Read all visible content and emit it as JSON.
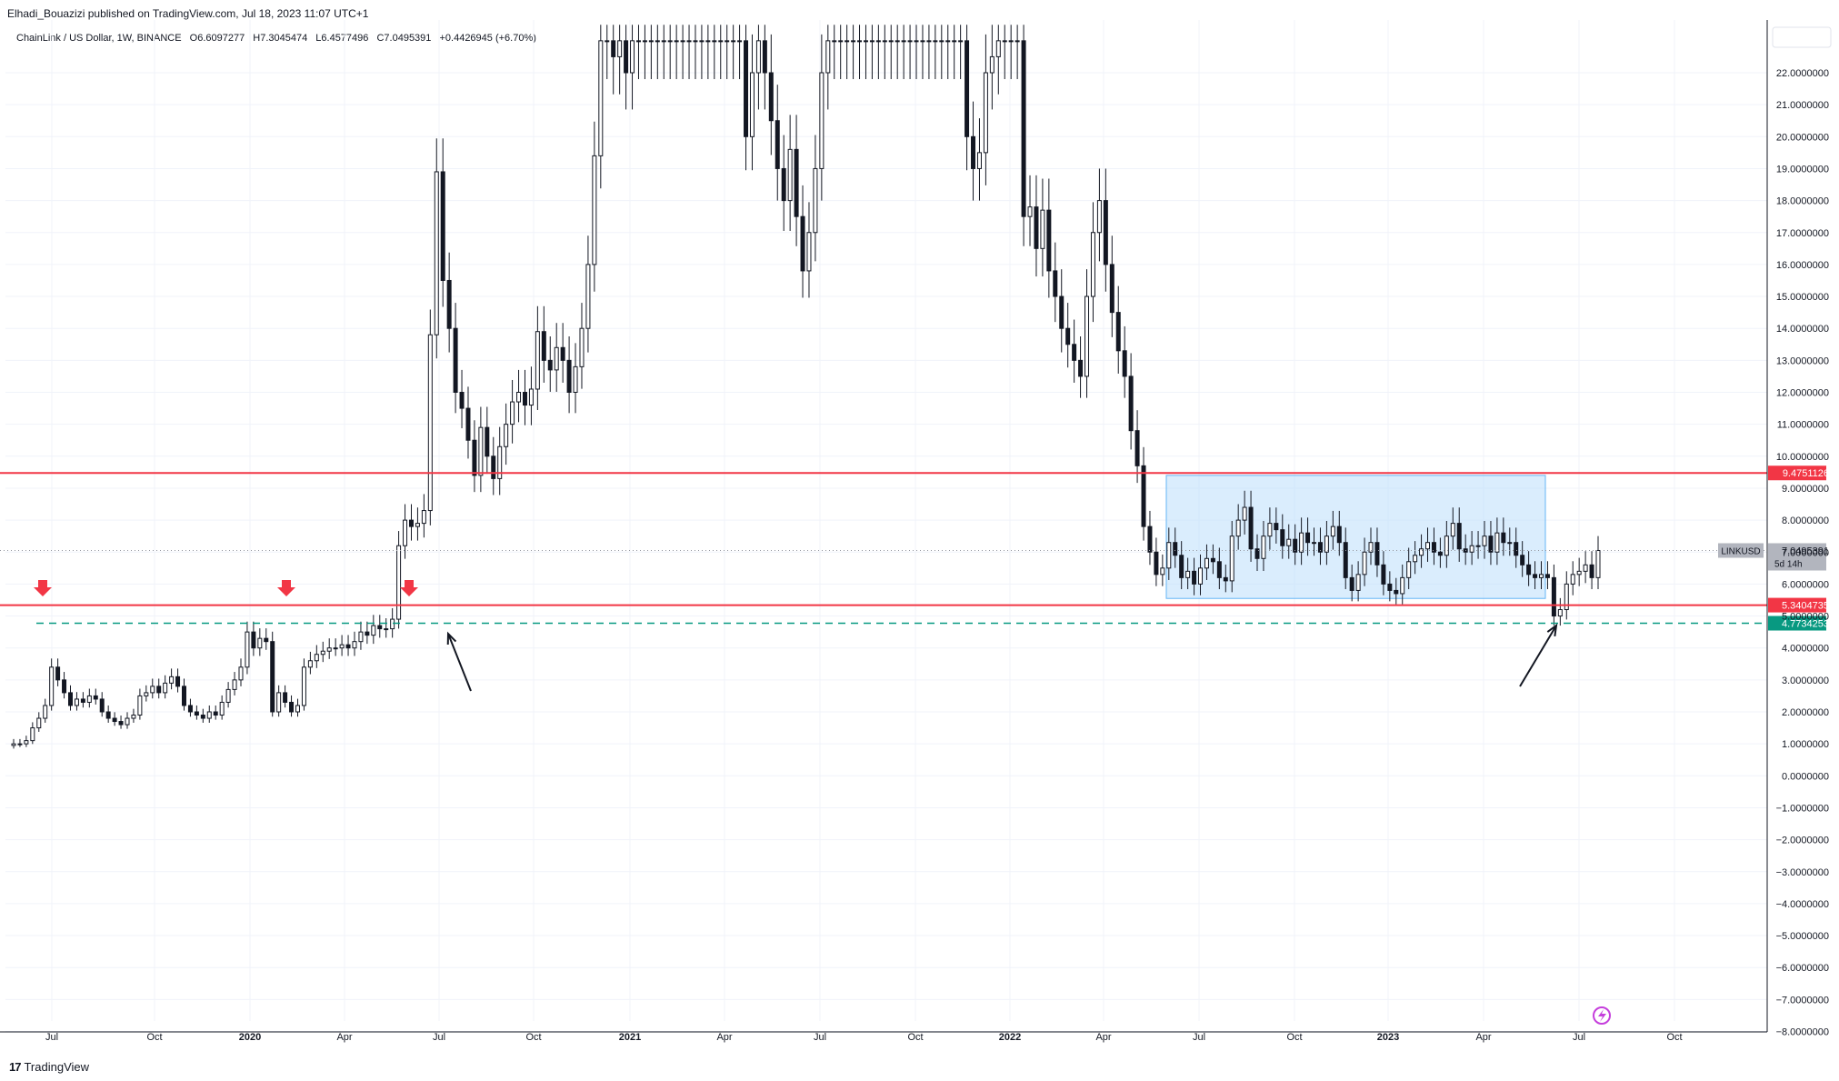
{
  "header": {
    "published": "Elhadi_Bouazizi published on TradingView.com, Jul 18, 2023 11:07 UTC+1"
  },
  "symbol_bar": {
    "name": "ChainLink / US Dollar, 1W, BINANCE",
    "open": "O6.6097277",
    "high": "H7.3045474",
    "low": "L6.4577496",
    "close": "C7.0495391",
    "change": "+0.4426945 (+6.70%)"
  },
  "footer": {
    "logo_mark": "17",
    "logo_text": "TradingView"
  },
  "colors": {
    "up": "#ffffff",
    "down": "#131722",
    "wick": "#131722",
    "resistance": "#f23645",
    "support_dashed": "#089981",
    "range_fill": "#bbdefb",
    "range_border": "#64b5f6",
    "arrow_red": "#f23645",
    "grid": "#f0f3fa",
    "axis_text": "#131722"
  },
  "chart_data": {
    "type": "candlestick",
    "ylim": [
      -8,
      23.2
    ],
    "y_ticks": [
      "22.0000000",
      "21.0000000",
      "20.0000000",
      "19.0000000",
      "18.0000000",
      "17.0000000",
      "16.0000000",
      "15.0000000",
      "14.0000000",
      "13.0000000",
      "12.0000000",
      "11.0000000",
      "10.0000000",
      "9.0000000",
      "8.0000000",
      "7.0000000",
      "6.0000000",
      "5.0000000",
      "4.0000000",
      "3.0000000",
      "2.0000000",
      "1.0000000",
      "0.0000000",
      "−1.0000000",
      "−2.0000000",
      "−3.0000000",
      "−4.0000000",
      "−5.0000000",
      "−6.0000000",
      "−7.0000000",
      "−8.0000000"
    ],
    "x_ticks": [
      {
        "label": "Jul",
        "bold": false
      },
      {
        "label": "Oct",
        "bold": false
      },
      {
        "label": "2020",
        "bold": true
      },
      {
        "label": "Apr",
        "bold": false
      },
      {
        "label": "Jul",
        "bold": false
      },
      {
        "label": "Oct",
        "bold": false
      },
      {
        "label": "2021",
        "bold": true
      },
      {
        "label": "Apr",
        "bold": false
      },
      {
        "label": "Jul",
        "bold": false
      },
      {
        "label": "Oct",
        "bold": false
      },
      {
        "label": "2022",
        "bold": true
      },
      {
        "label": "Apr",
        "bold": false
      },
      {
        "label": "Jul",
        "bold": false
      },
      {
        "label": "Oct",
        "bold": false
      },
      {
        "label": "2023",
        "bold": true
      },
      {
        "label": "Apr",
        "bold": false
      },
      {
        "label": "Jul",
        "bold": false
      },
      {
        "label": "Oct",
        "bold": false
      }
    ],
    "horizontal_lines": [
      {
        "value": 9.4751126,
        "label": "9.4751126",
        "style": "solid",
        "color": "#f23645"
      },
      {
        "value": 5.3404735,
        "label": "5.3404735",
        "style": "solid",
        "color": "#f23645"
      },
      {
        "value": 4.7734253,
        "label": "4.7734253",
        "style": "dashed",
        "color": "#089981"
      }
    ],
    "last_price": {
      "symbol": "LINKUSD",
      "value": "7.0495391",
      "countdown": "5d 14h",
      "level": 7.05
    },
    "range_box": {
      "x_start": "2022-06",
      "x_end": "2023-06",
      "y_low": 5.55,
      "y_high": 9.4
    },
    "down_arrows": [
      "2019-07",
      "2020-02",
      "2020-06"
    ],
    "pointer_arrows": [
      "2020-07",
      "2023-06"
    ],
    "series": [
      {
        "c": 1.0
      },
      {
        "c": 1.0
      },
      {
        "c": 1.1
      },
      {
        "c": 1.5
      },
      {
        "c": 1.8
      },
      {
        "c": 2.2
      },
      {
        "c": 3.4
      },
      {
        "c": 3.0
      },
      {
        "c": 2.6
      },
      {
        "c": 2.2
      },
      {
        "c": 2.4
      },
      {
        "c": 2.3
      },
      {
        "c": 2.5
      },
      {
        "c": 2.4
      },
      {
        "c": 2.0
      },
      {
        "c": 1.8
      },
      {
        "c": 1.7
      },
      {
        "c": 1.6
      },
      {
        "c": 1.8
      },
      {
        "c": 1.9
      },
      {
        "c": 2.5
      },
      {
        "c": 2.6
      },
      {
        "c": 2.8
      },
      {
        "c": 2.6
      },
      {
        "c": 2.9
      },
      {
        "c": 3.1
      },
      {
        "c": 2.8
      },
      {
        "c": 2.2
      },
      {
        "c": 2.0
      },
      {
        "c": 1.9
      },
      {
        "c": 1.8
      },
      {
        "c": 2.0
      },
      {
        "c": 1.9
      },
      {
        "c": 2.3
      },
      {
        "c": 2.7
      },
      {
        "c": 3.0
      },
      {
        "c": 3.4
      },
      {
        "c": 4.5
      },
      {
        "c": 4.0
      },
      {
        "c": 4.3
      },
      {
        "c": 4.2
      },
      {
        "c": 2.0
      },
      {
        "c": 2.6
      },
      {
        "c": 2.3
      },
      {
        "c": 2.0
      },
      {
        "c": 2.2
      },
      {
        "c": 3.4
      },
      {
        "c": 3.6
      },
      {
        "c": 3.8
      },
      {
        "c": 3.9
      },
      {
        "c": 4.0
      },
      {
        "c": 4.0
      },
      {
        "c": 4.1
      },
      {
        "c": 4.0
      },
      {
        "c": 4.2
      },
      {
        "c": 4.5
      },
      {
        "c": 4.4
      },
      {
        "c": 4.7
      },
      {
        "c": 4.6
      },
      {
        "c": 4.6
      },
      {
        "c": 4.9
      },
      {
        "c": 7.2
      },
      {
        "c": 8.0
      },
      {
        "c": 7.8
      },
      {
        "c": 7.9
      },
      {
        "c": 8.3
      },
      {
        "c": 13.8
      },
      {
        "c": 18.9
      },
      {
        "c": 15.5
      },
      {
        "c": 14.0
      },
      {
        "c": 12.0
      },
      {
        "c": 11.5
      },
      {
        "c": 10.5
      },
      {
        "c": 9.4
      },
      {
        "c": 10.9
      },
      {
        "c": 10.0
      },
      {
        "c": 9.3
      },
      {
        "c": 10.3
      },
      {
        "c": 11.0
      },
      {
        "c": 11.7
      },
      {
        "c": 12.0
      },
      {
        "c": 11.6
      },
      {
        "c": 12.1
      },
      {
        "c": 13.9
      },
      {
        "c": 13.0
      },
      {
        "c": 12.7
      },
      {
        "c": 13.4
      },
      {
        "c": 13.0
      },
      {
        "c": 12.0
      },
      {
        "c": 12.8
      },
      {
        "c": 14.0
      },
      {
        "c": 16.0
      },
      {
        "c": 19.4
      },
      {
        "c": 23.0
      },
      {
        "c": 23.0
      },
      {
        "c": 22.5
      },
      {
        "c": 23.0
      },
      {
        "c": 22.0
      },
      {
        "c": 23.0
      },
      {
        "c": 23.0
      },
      {
        "c": 23.0
      },
      {
        "c": 23.0
      },
      {
        "c": 23.0
      },
      {
        "c": 23.0
      },
      {
        "c": 23.0
      },
      {
        "c": 23.0
      },
      {
        "c": 23.0
      },
      {
        "c": 23.0
      },
      {
        "c": 23.0
      },
      {
        "c": 23.0
      },
      {
        "c": 23.0
      },
      {
        "c": 23.0
      },
      {
        "c": 23.0
      },
      {
        "c": 23.0
      },
      {
        "c": 23.0
      },
      {
        "c": 23.0
      },
      {
        "c": 20.0
      },
      {
        "c": 22.0
      },
      {
        "c": 23.0
      },
      {
        "c": 22.0
      },
      {
        "c": 20.5
      },
      {
        "c": 19.0
      },
      {
        "c": 18.0
      },
      {
        "c": 19.6
      },
      {
        "c": 17.5
      },
      {
        "c": 15.8
      },
      {
        "c": 17.0
      },
      {
        "c": 19.0
      },
      {
        "c": 22.0
      },
      {
        "c": 23.0
      },
      {
        "c": 23.0
      },
      {
        "c": 23.0
      },
      {
        "c": 23.0
      },
      {
        "c": 23.0
      },
      {
        "c": 23.0
      },
      {
        "c": 23.0
      },
      {
        "c": 23.0
      },
      {
        "c": 23.0
      },
      {
        "c": 23.0
      },
      {
        "c": 23.0
      },
      {
        "c": 23.0
      },
      {
        "c": 23.0
      },
      {
        "c": 23.0
      },
      {
        "c": 23.0
      },
      {
        "c": 23.0
      },
      {
        "c": 23.0
      },
      {
        "c": 23.0
      },
      {
        "c": 23.0
      },
      {
        "c": 23.0
      },
      {
        "c": 23.0
      },
      {
        "c": 23.0
      },
      {
        "c": 20.0
      },
      {
        "c": 19.0
      },
      {
        "c": 19.5
      },
      {
        "c": 22.0
      },
      {
        "c": 22.5
      },
      {
        "c": 23.0
      },
      {
        "c": 23.0
      },
      {
        "c": 23.0
      },
      {
        "c": 23.0
      },
      {
        "c": 17.5
      },
      {
        "c": 17.8
      },
      {
        "c": 16.5
      },
      {
        "c": 17.7
      },
      {
        "c": 15.8
      },
      {
        "c": 15.0
      },
      {
        "c": 14.0
      },
      {
        "c": 13.5
      },
      {
        "c": 13.0
      },
      {
        "c": 12.5
      },
      {
        "c": 15.0
      },
      {
        "c": 17.0
      },
      {
        "c": 18.0
      },
      {
        "c": 16.0
      },
      {
        "c": 14.5
      },
      {
        "c": 13.3
      },
      {
        "c": 12.5
      },
      {
        "c": 10.8
      },
      {
        "c": 9.7
      },
      {
        "c": 7.8
      },
      {
        "c": 7.0
      },
      {
        "c": 6.3
      },
      {
        "c": 6.5
      },
      {
        "c": 7.3
      },
      {
        "c": 6.9
      },
      {
        "c": 6.2
      },
      {
        "c": 6.4
      },
      {
        "c": 6.0
      },
      {
        "c": 6.5
      },
      {
        "c": 6.8
      },
      {
        "c": 6.7
      },
      {
        "c": 6.2
      },
      {
        "c": 6.1
      },
      {
        "c": 7.5
      },
      {
        "c": 8.0
      },
      {
        "c": 8.4
      },
      {
        "c": 7.1
      },
      {
        "c": 6.8
      },
      {
        "c": 7.5
      },
      {
        "c": 7.9
      },
      {
        "c": 7.7
      },
      {
        "c": 7.2
      },
      {
        "c": 7.4
      },
      {
        "c": 7.0
      },
      {
        "c": 7.6
      },
      {
        "c": 7.3
      },
      {
        "c": 7.3
      },
      {
        "c": 7.0
      },
      {
        "c": 7.5
      },
      {
        "c": 7.8
      },
      {
        "c": 7.3
      },
      {
        "c": 6.2
      },
      {
        "c": 5.8
      },
      {
        "c": 6.3
      },
      {
        "c": 7.0
      },
      {
        "c": 7.3
      },
      {
        "c": 6.6
      },
      {
        "c": 6.0
      },
      {
        "c": 5.8
      },
      {
        "c": 5.7
      },
      {
        "c": 6.2
      },
      {
        "c": 6.7
      },
      {
        "c": 6.9
      },
      {
        "c": 7.1
      },
      {
        "c": 7.3
      },
      {
        "c": 7.0
      },
      {
        "c": 6.9
      },
      {
        "c": 7.5
      },
      {
        "c": 7.9
      },
      {
        "c": 7.1
      },
      {
        "c": 7.0
      },
      {
        "c": 7.2
      },
      {
        "c": 7.2
      },
      {
        "c": 7.5
      },
      {
        "c": 7.0
      },
      {
        "c": 7.6
      },
      {
        "c": 7.3
      },
      {
        "c": 7.3
      },
      {
        "c": 6.9
      },
      {
        "c": 6.6
      },
      {
        "c": 6.3
      },
      {
        "c": 6.2
      },
      {
        "c": 6.3
      },
      {
        "c": 6.2
      },
      {
        "c": 5.0
      },
      {
        "c": 5.2
      },
      {
        "c": 6.0
      },
      {
        "c": 6.3
      },
      {
        "c": 6.4
      },
      {
        "c": 6.6
      },
      {
        "c": 6.2
      },
      {
        "c": 7.05
      }
    ]
  }
}
